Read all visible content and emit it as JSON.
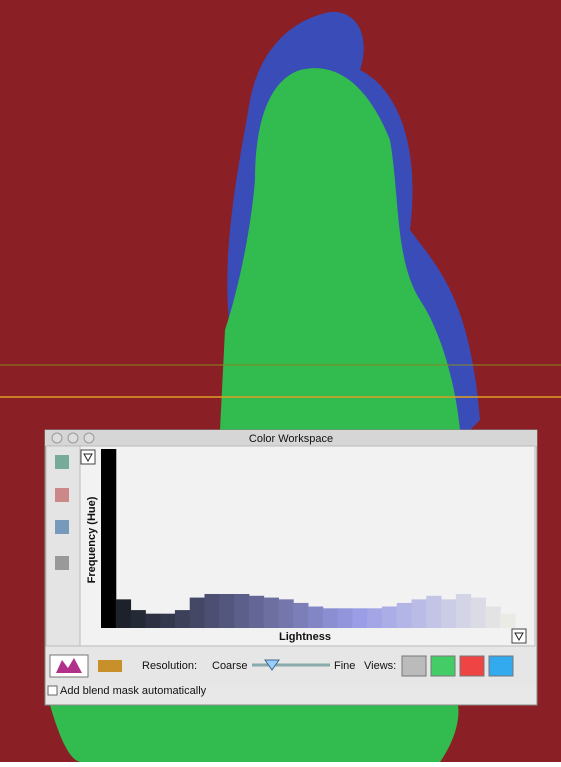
{
  "window": {
    "title": "Color Workspace"
  },
  "histogram": {
    "y_label": "Frequency (Hue)",
    "x_label": "Lightness",
    "ylim": [
      0,
      100
    ],
    "values": [
      100,
      16,
      10,
      8,
      8,
      10,
      17,
      19,
      19,
      19,
      18,
      17,
      16,
      14,
      12,
      11,
      11,
      11,
      11,
      12,
      14,
      16,
      18,
      16,
      19,
      17,
      12,
      8
    ]
  },
  "toolbar": {
    "resolution_label": "Resolution:",
    "coarse": "Coarse",
    "fine": "Fine",
    "views_label": "Views:"
  },
  "checkbox": {
    "label": "Add blend mask automatically"
  }
}
